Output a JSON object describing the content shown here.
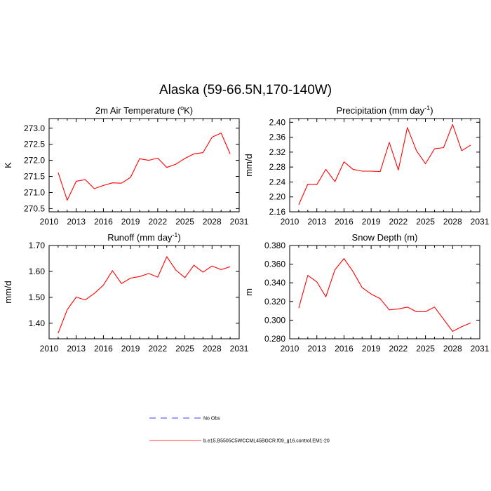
{
  "figure": {
    "title": "Alaska (59-66.5N,170-140W)"
  },
  "chart_data": [
    {
      "type": "line",
      "title": "2m Air Temperature (",
      "title_sup": "o",
      "title_suffix": "K)",
      "xlabel": "",
      "ylabel": "K",
      "xlim": [
        2010,
        2031
      ],
      "ylim": [
        270.4,
        273.3
      ],
      "xticks": [
        2010,
        2013,
        2016,
        2019,
        2022,
        2025,
        2028,
        2031
      ],
      "yticks": [
        270.5,
        271.0,
        271.5,
        272.0,
        272.5,
        273.0
      ],
      "ytick_labels": [
        "270.5",
        "271.0",
        "271.5",
        "272.0",
        "272.5",
        "273.0"
      ],
      "x": [
        2011,
        2012,
        2013,
        2014,
        2015,
        2016,
        2017,
        2018,
        2019,
        2020,
        2021,
        2022,
        2023,
        2024,
        2025,
        2026,
        2027,
        2028,
        2029,
        2030
      ],
      "series": [
        {
          "name": "b.e15.B5505C5WCCML45BGCR.f09_g16.control.EM1-20",
          "color": "#ff0000",
          "values": [
            271.62,
            270.76,
            271.35,
            271.4,
            271.12,
            271.22,
            271.3,
            271.29,
            271.47,
            272.05,
            272.0,
            272.07,
            271.78,
            271.88,
            272.06,
            272.2,
            272.24,
            272.72,
            272.85,
            272.2
          ]
        }
      ]
    },
    {
      "type": "line",
      "title": "Precipitation (mm day",
      "title_sup": "-1",
      "title_suffix": ")",
      "xlabel": "",
      "ylabel": "mm/d",
      "xlim": [
        2010,
        2031
      ],
      "ylim": [
        2.16,
        2.41
      ],
      "xticks": [
        2010,
        2013,
        2016,
        2019,
        2022,
        2025,
        2028,
        2031
      ],
      "yticks": [
        2.16,
        2.2,
        2.24,
        2.28,
        2.32,
        2.36,
        2.4
      ],
      "ytick_labels": [
        "2.16",
        "2.20",
        "2.24",
        "2.28",
        "2.32",
        "2.36",
        "2.40"
      ],
      "x": [
        2011,
        2012,
        2013,
        2014,
        2015,
        2016,
        2017,
        2018,
        2019,
        2020,
        2021,
        2022,
        2023,
        2024,
        2025,
        2026,
        2027,
        2028,
        2029,
        2030
      ],
      "series": [
        {
          "name": "b.e15.B5505C5WCCML45BGCR.f09_g16.control.EM1-20",
          "color": "#ff0000",
          "values": [
            2.179,
            2.234,
            2.233,
            2.274,
            2.241,
            2.294,
            2.274,
            2.269,
            2.269,
            2.268,
            2.346,
            2.272,
            2.386,
            2.324,
            2.289,
            2.329,
            2.332,
            2.394,
            2.324,
            2.339
          ]
        }
      ]
    },
    {
      "type": "line",
      "title": "Runoff (mm day",
      "title_sup": "-1",
      "title_suffix": ")",
      "xlabel": "",
      "ylabel": "mm/d",
      "xlim": [
        2010,
        2031
      ],
      "ylim": [
        1.34,
        1.7
      ],
      "xticks": [
        2010,
        2013,
        2016,
        2019,
        2022,
        2025,
        2028,
        2031
      ],
      "yticks": [
        1.4,
        1.5,
        1.6,
        1.7
      ],
      "ytick_labels": [
        "1.40",
        "1.50",
        "1.60",
        "1.70"
      ],
      "x": [
        2011,
        2012,
        2013,
        2014,
        2015,
        2016,
        2017,
        2018,
        2019,
        2020,
        2021,
        2022,
        2023,
        2024,
        2025,
        2026,
        2027,
        2028,
        2029,
        2030
      ],
      "series": [
        {
          "name": "b.e15.B5505C5WCCML45BGCR.f09_g16.control.EM1-20",
          "color": "#ff0000",
          "values": [
            1.362,
            1.452,
            1.501,
            1.49,
            1.515,
            1.547,
            1.603,
            1.553,
            1.574,
            1.58,
            1.592,
            1.578,
            1.657,
            1.605,
            1.576,
            1.624,
            1.597,
            1.621,
            1.607,
            1.618
          ]
        }
      ]
    },
    {
      "type": "line",
      "title": "Snow Depth (m)",
      "title_sup": "",
      "title_suffix": "",
      "xlabel": "",
      "ylabel": "m",
      "xlim": [
        2010,
        2031
      ],
      "ylim": [
        0.28,
        0.38
      ],
      "xticks": [
        2010,
        2013,
        2016,
        2019,
        2022,
        2025,
        2028,
        2031
      ],
      "yticks": [
        0.28,
        0.3,
        0.32,
        0.34,
        0.36,
        0.38
      ],
      "ytick_labels": [
        "0.280",
        "0.300",
        "0.320",
        "0.340",
        "0.360",
        "0.380"
      ],
      "x": [
        2011,
        2012,
        2013,
        2014,
        2015,
        2016,
        2017,
        2018,
        2019,
        2020,
        2021,
        2022,
        2023,
        2024,
        2025,
        2026,
        2027,
        2028,
        2029,
        2030
      ],
      "series": [
        {
          "name": "b.e15.B5505C5WCCML45BGCR.f09_g16.control.EM1-20",
          "color": "#ff0000",
          "values": [
            0.313,
            0.348,
            0.341,
            0.325,
            0.354,
            0.366,
            0.352,
            0.335,
            0.328,
            0.323,
            0.311,
            0.312,
            0.314,
            0.309,
            0.309,
            0.314,
            0.301,
            0.288,
            0.293,
            0.297
          ]
        }
      ]
    }
  ],
  "legend": {
    "items": [
      {
        "label": "No Obs",
        "color": "#0000ff",
        "style": "dashed"
      },
      {
        "label": "b.e15.B5505C5WCCML45BGCR.f09_g16.control.EM1-20",
        "color": "#ff0000",
        "style": "solid"
      }
    ]
  }
}
